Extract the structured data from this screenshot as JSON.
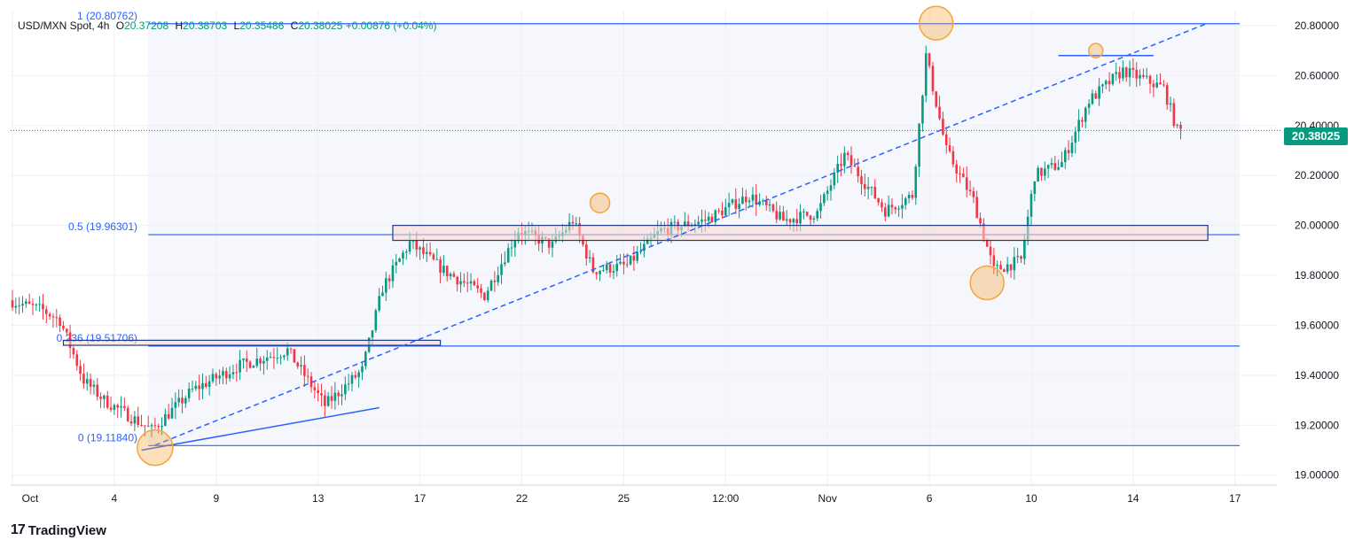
{
  "header": {
    "symbol": "USD/MXN Spot, 4h",
    "open_key": "O",
    "open": "20.37208",
    "high_key": "H",
    "high": "20.38703",
    "low_key": "L",
    "low": "20.35486",
    "close_key": "C",
    "close": "20.38025",
    "change": "+0.00876 (+0.04%)"
  },
  "brand": {
    "logo": "17",
    "name": "TradingView"
  },
  "last_price_label": "20.38025",
  "colors": {
    "up": "#089981",
    "down": "#f23645",
    "line": "#2962ff",
    "circle": "#f7a43b",
    "zone": "#f8d9d0"
  },
  "chart_data": {
    "type": "candlestick",
    "timeframe": "4h",
    "ylim": [
      18.96,
      20.86
    ],
    "y_ticks": [
      "19.00000",
      "19.20000",
      "19.40000",
      "19.60000",
      "19.80000",
      "20.00000",
      "20.20000",
      "20.40000",
      "20.60000",
      "20.80000"
    ],
    "x_ticks": [
      {
        "label": "Oct",
        "i": 0
      },
      {
        "label": "4",
        "i": 30
      },
      {
        "label": "9",
        "i": 60
      },
      {
        "label": "13",
        "i": 90
      },
      {
        "label": "17",
        "i": 120
      },
      {
        "label": "22",
        "i": 150
      },
      {
        "label": "25",
        "i": 180
      },
      {
        "label": "12:00",
        "i": 210
      },
      {
        "label": "Nov",
        "i": 240
      },
      {
        "label": "6",
        "i": 270
      },
      {
        "label": "10",
        "i": 300
      },
      {
        "label": "14",
        "i": 330
      },
      {
        "label": "17",
        "i": 360
      }
    ],
    "n_candles": 345,
    "fib_levels": [
      {
        "label": "1 (20.80762)",
        "value": 20.80762
      },
      {
        "label": "0.5 (19.96301)",
        "value": 19.96301
      },
      {
        "label": "0.236 (19.51706)",
        "value": 19.51706
      },
      {
        "label": "0 (19.11840)",
        "value": 19.1184
      }
    ],
    "anchors": [
      {
        "i": 0,
        "p": 19.7
      },
      {
        "i": 10,
        "p": 19.66
      },
      {
        "i": 15,
        "p": 19.62
      },
      {
        "i": 22,
        "p": 19.38
      },
      {
        "i": 28,
        "p": 19.3
      },
      {
        "i": 42,
        "p": 19.18
      },
      {
        "i": 54,
        "p": 19.34
      },
      {
        "i": 68,
        "p": 19.44
      },
      {
        "i": 82,
        "p": 19.5
      },
      {
        "i": 93,
        "p": 19.28
      },
      {
        "i": 104,
        "p": 19.42
      },
      {
        "i": 110,
        "p": 19.75
      },
      {
        "i": 118,
        "p": 19.93
      },
      {
        "i": 128,
        "p": 19.82
      },
      {
        "i": 140,
        "p": 19.72
      },
      {
        "i": 150,
        "p": 19.98
      },
      {
        "i": 160,
        "p": 19.92
      },
      {
        "i": 166,
        "p": 20.02
      },
      {
        "i": 172,
        "p": 19.82
      },
      {
        "i": 182,
        "p": 19.84
      },
      {
        "i": 192,
        "p": 19.98
      },
      {
        "i": 205,
        "p": 20.02
      },
      {
        "i": 218,
        "p": 20.12
      },
      {
        "i": 228,
        "p": 20.02
      },
      {
        "i": 238,
        "p": 20.05
      },
      {
        "i": 246,
        "p": 20.28
      },
      {
        "i": 258,
        "p": 20.06
      },
      {
        "i": 266,
        "p": 20.12
      },
      {
        "i": 270,
        "p": 20.68
      },
      {
        "i": 276,
        "p": 20.3
      },
      {
        "i": 284,
        "p": 20.1
      },
      {
        "i": 290,
        "p": 19.82
      },
      {
        "i": 298,
        "p": 19.86
      },
      {
        "i": 302,
        "p": 20.2
      },
      {
        "i": 310,
        "p": 20.25
      },
      {
        "i": 318,
        "p": 20.5
      },
      {
        "i": 328,
        "p": 20.62
      },
      {
        "i": 340,
        "p": 20.55
      },
      {
        "i": 344,
        "p": 20.38
      }
    ],
    "rectangles": [
      {
        "i0": 112,
        "i1": 352,
        "p0": 19.94,
        "p1": 20.0
      },
      {
        "i0": 15,
        "i1": 126,
        "p0": 19.52,
        "p1": 19.54
      }
    ],
    "trendlines": [
      {
        "i0": 42,
        "p0": 19.12,
        "i1": 352,
        "p1": 20.81,
        "dashed": true
      },
      {
        "i0": 38,
        "p0": 19.1,
        "i1": 108,
        "p1": 19.27,
        "dashed": false
      },
      {
        "i0": 308,
        "p0": 20.68,
        "i1": 336,
        "p1": 20.68,
        "dashed": false
      }
    ],
    "highlights": [
      {
        "i": 42,
        "p": 19.11,
        "r": 20
      },
      {
        "i": 173,
        "p": 20.09,
        "r": 11
      },
      {
        "i": 272,
        "p": 20.81,
        "r": 19
      },
      {
        "i": 287,
        "p": 19.77,
        "r": 19
      },
      {
        "i": 319,
        "p": 20.7,
        "r": 8
      }
    ]
  }
}
